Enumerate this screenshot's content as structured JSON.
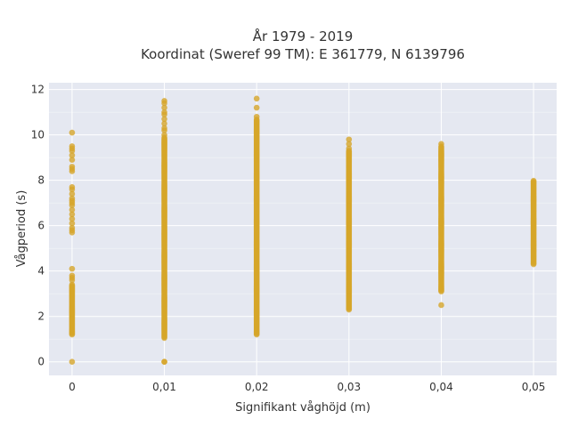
{
  "chart_data": {
    "type": "scatter",
    "title_lines": [
      "År 1979 - 2019",
      "Koordinat (Sweref 99 TM): E 361779, N 6139796"
    ],
    "xlabel": "Signifikant våghöjd (m)",
    "ylabel": "Vågperiod (s)",
    "x_ticks": [
      0,
      0.01,
      0.02,
      0.03,
      0.04,
      0.05
    ],
    "x_tick_labels": [
      "0",
      "0,01",
      "0,02",
      "0,03",
      "0,04",
      "0,05"
    ],
    "y_ticks": [
      0,
      2,
      4,
      6,
      8,
      10,
      12
    ],
    "y_tick_labels": [
      "0",
      "2",
      "4",
      "6",
      "8",
      "10",
      "12"
    ],
    "xlim": [
      -0.0025,
      0.0525
    ],
    "ylim": [
      -0.6,
      12.3
    ],
    "grid": true,
    "background_color": "#e5e8f1",
    "marker_color": "#d6a52a",
    "series": [
      {
        "x_value": 0,
        "points": [
          0,
          10.1,
          9.5,
          9.4,
          9.3,
          9.1,
          8.9,
          8.6,
          8.5,
          8.4,
          7.7,
          7.6,
          7.4,
          7.2,
          7.1,
          7.0,
          6.9,
          6.7,
          6.5,
          6.3,
          6.1,
          5.9,
          5.8,
          5.7,
          4.1,
          3.8,
          3.7,
          3.6
        ],
        "range": [
          1.2,
          3.4
        ]
      },
      {
        "x_value": 0.01,
        "points": [
          0,
          0,
          11.5,
          11.4,
          11.2,
          11.0,
          10.9,
          10.7,
          10.5,
          10.3,
          10.2,
          10.0
        ],
        "range": [
          1.05,
          9.9
        ]
      },
      {
        "x_value": 0.02,
        "points": [
          11.6,
          11.2,
          10.8
        ],
        "range": [
          1.2,
          10.7
        ]
      },
      {
        "x_value": 0.03,
        "points": [
          9.8,
          9.6,
          9.4
        ],
        "range": [
          2.3,
          9.3
        ]
      },
      {
        "x_value": 0.04,
        "points": [
          9.6,
          2.5
        ],
        "range": [
          3.1,
          9.5
        ]
      },
      {
        "x_value": 0.05,
        "points": [],
        "range": [
          4.3,
          8.0
        ]
      }
    ]
  }
}
